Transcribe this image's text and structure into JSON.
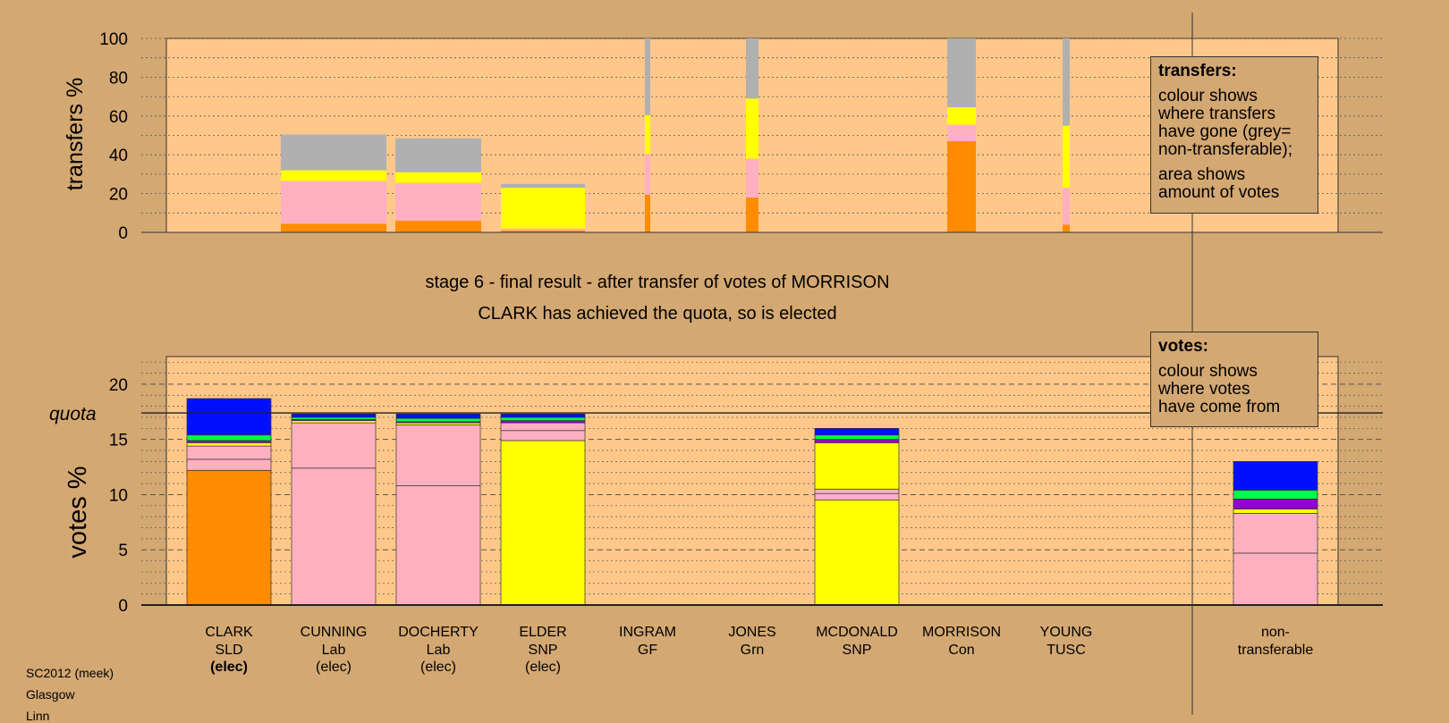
{
  "chart_data": [
    {
      "type": "bar",
      "name": "transfers",
      "ylabel": "transfers %",
      "ylim": [
        0,
        100
      ],
      "yticks": [
        0,
        20,
        40,
        60,
        80,
        100
      ],
      "categories": [
        "CLARK",
        "CUNNING",
        "DOCHERTY",
        "ELDER",
        "INGRAM",
        "JONES",
        "MCDONALD",
        "MORRISON",
        "YOUNG"
      ],
      "stacks": [
        [],
        [
          {
            "color": "#ff8c00",
            "value": 4.5
          },
          {
            "color": "#ffb0c0",
            "value": 22
          },
          {
            "color": "#ffff00",
            "value": 5.5
          },
          {
            "color": "#b0b0b0",
            "value": 18.5
          }
        ],
        [
          {
            "color": "#ff8c00",
            "value": 6
          },
          {
            "color": "#ffb0c0",
            "value": 19.5
          },
          {
            "color": "#ffff00",
            "value": 5.5
          },
          {
            "color": "#b0b0b0",
            "value": 17.5
          }
        ],
        [
          {
            "color": "#ff8c00",
            "value": 1
          },
          {
            "color": "#ffb0c0",
            "value": 1
          },
          {
            "color": "#ffff00",
            "value": 21
          },
          {
            "color": "#b0b0b0",
            "value": 2
          }
        ],
        [
          {
            "color": "#ff8c00",
            "value": 19.5
          },
          {
            "color": "#ffb0c0",
            "value": 21
          },
          {
            "color": "#ffff00",
            "value": 20
          },
          {
            "color": "#b0b0b0",
            "value": 39.5
          }
        ],
        [
          {
            "color": "#ff8c00",
            "value": 18
          },
          {
            "color": "#ffb0c0",
            "value": 20
          },
          {
            "color": "#ffff00",
            "value": 31
          },
          {
            "color": "#b0b0b0",
            "value": 31
          }
        ],
        [],
        [
          {
            "color": "#ff8c00",
            "value": 47
          },
          {
            "color": "#ffb0c0",
            "value": 8.5
          },
          {
            "color": "#ffff00",
            "value": 9
          },
          {
            "color": "#b0b0b0",
            "value": 35.5
          }
        ],
        [
          {
            "color": "#ff8c00",
            "value": 4
          },
          {
            "color": "#ffb0c0",
            "value": 19
          },
          {
            "color": "#ffff00",
            "value": 32
          },
          {
            "color": "#b0b0b0",
            "value": 45
          }
        ]
      ]
    },
    {
      "type": "bar",
      "name": "votes",
      "ylabel": "votes %",
      "ylim": [
        0,
        22.5
      ],
      "yticks": [
        0,
        5,
        10,
        15,
        20
      ],
      "quota": 17.4,
      "quota_label": "quota",
      "categories": [
        "CLARK",
        "CUNNING",
        "DOCHERTY",
        "ELDER",
        "INGRAM",
        "JONES",
        "MCDONALD",
        "MORRISON",
        "YOUNG",
        "non-transferable"
      ],
      "stacks": [
        [
          {
            "color": "#ff8c00",
            "value": 12.2
          },
          {
            "color": "#ffb0c0",
            "value": 1
          },
          {
            "color": "#ffb0c0",
            "value": 1.2
          },
          {
            "color": "#ffff00",
            "value": 0.3
          },
          {
            "color": "#9400d3",
            "value": 0.2
          },
          {
            "color": "#00ff40",
            "value": 0.5
          },
          {
            "color": "#0010ff",
            "value": 3.3
          }
        ],
        [
          {
            "color": "#ffb0c0",
            "value": 12.4
          },
          {
            "color": "#ffb0c0",
            "value": 4.1
          },
          {
            "color": "#ffff00",
            "value": 0.2
          },
          {
            "color": "#9400d3",
            "value": 0.1
          },
          {
            "color": "#00ff40",
            "value": 0.2
          },
          {
            "color": "#0010ff",
            "value": 0.3
          }
        ],
        [
          {
            "color": "#ffb0c0",
            "value": 10.8
          },
          {
            "color": "#ffb0c0",
            "value": 5.5
          },
          {
            "color": "#ffff00",
            "value": 0.2
          },
          {
            "color": "#9400d3",
            "value": 0.1
          },
          {
            "color": "#00ff40",
            "value": 0.3
          },
          {
            "color": "#0010ff",
            "value": 0.4
          }
        ],
        [
          {
            "color": "#ffff00",
            "value": 14.9
          },
          {
            "color": "#ffb0c0",
            "value": 0.9
          },
          {
            "color": "#ffb0c0",
            "value": 0.7
          },
          {
            "color": "#9400d3",
            "value": 0.2
          },
          {
            "color": "#00ff40",
            "value": 0.3
          },
          {
            "color": "#0010ff",
            "value": 0.3
          }
        ],
        [],
        [],
        [
          {
            "color": "#ffff00",
            "value": 9.5
          },
          {
            "color": "#ffb0c0",
            "value": 0.6
          },
          {
            "color": "#ffb0c0",
            "value": 0.4
          },
          {
            "color": "#ffff00",
            "value": 4.2
          },
          {
            "color": "#9400d3",
            "value": 0.3
          },
          {
            "color": "#00ff40",
            "value": 0.4
          },
          {
            "color": "#0010ff",
            "value": 0.6
          }
        ],
        [],
        [],
        [
          {
            "color": "#ffb0c0",
            "value": 4.7
          },
          {
            "color": "#ffb0c0",
            "value": 3.6
          },
          {
            "color": "#ffff00",
            "value": 0.4
          },
          {
            "color": "#9400d3",
            "value": 0.9
          },
          {
            "color": "#00ff40",
            "value": 0.8
          },
          {
            "color": "#0010ff",
            "value": 2.6
          }
        ]
      ]
    }
  ],
  "colors": {
    "background": "#d4a872",
    "plot_background": "#ffc88a"
  },
  "title_line1": "stage 6 - final result - after transfer of votes of MORRISON",
  "title_line2": "CLARK has achieved the quota, so is elected",
  "candidate_labels": [
    {
      "name": "CLARK",
      "party": "SLD",
      "status": "(elec)",
      "bold_status": true
    },
    {
      "name": "CUNNING",
      "party": "Lab",
      "status": "(elec)",
      "bold_status": false
    },
    {
      "name": "DOCHERTY",
      "party": "Lab",
      "status": "(elec)",
      "bold_status": false
    },
    {
      "name": "ELDER",
      "party": "SNP",
      "status": "(elec)",
      "bold_status": false
    },
    {
      "name": "INGRAM",
      "party": "GF",
      "status": "",
      "bold_status": false
    },
    {
      "name": "JONES",
      "party": "Grn",
      "status": "",
      "bold_status": false
    },
    {
      "name": "MCDONALD",
      "party": "SNP",
      "status": "",
      "bold_status": false
    },
    {
      "name": "MORRISON",
      "party": "Con",
      "status": "",
      "bold_status": false
    },
    {
      "name": "YOUNG",
      "party": "TUSC",
      "status": "",
      "bold_status": false
    },
    {
      "name": "non-",
      "party": "transferable",
      "status": "",
      "bold_status": false
    }
  ],
  "legend_transfers": {
    "title": "transfers:",
    "lines_a": [
      "colour shows",
      "where transfers",
      "have gone (grey=",
      "non-transferable);"
    ],
    "lines_b": [
      "area shows",
      "amount of votes"
    ]
  },
  "legend_votes": {
    "title": "votes:",
    "lines": [
      "colour shows",
      "where votes",
      "have come from"
    ]
  },
  "footer": {
    "line1": "SC2012 (meek)",
    "line2": "Glasgow",
    "line3": "Linn"
  }
}
